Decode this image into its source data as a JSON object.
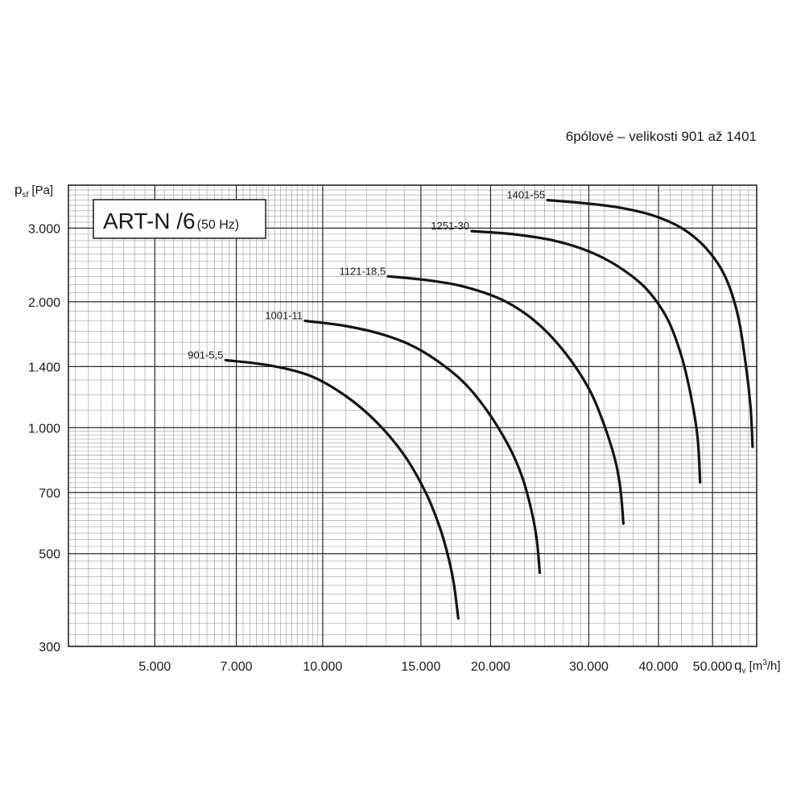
{
  "subtitle": "6pólové – velikosti 901 až 1401",
  "chart_data": {
    "type": "line",
    "title_main": "ART-N /6",
    "title_sub": "(50 Hz)",
    "xlabel": {
      "symbol": "q",
      "sub": "v",
      "unit_pre": " [m",
      "unit_sup": "3",
      "unit_post": "/h]"
    },
    "ylabel": {
      "symbol": "p",
      "sub": "sf",
      "unit": " [Pa]"
    },
    "xscale": "log",
    "yscale": "log",
    "xlim": [
      3500,
      60000
    ],
    "ylim": [
      300,
      3800
    ],
    "grid": true,
    "x_ticks": [
      {
        "value": 5000,
        "label": "5.000"
      },
      {
        "value": 7000,
        "label": "7.000"
      },
      {
        "value": 10000,
        "label": "10.000"
      },
      {
        "value": 15000,
        "label": "15.000"
      },
      {
        "value": 20000,
        "label": "20.000"
      },
      {
        "value": 30000,
        "label": "30.000"
      },
      {
        "value": 40000,
        "label": "40.000"
      },
      {
        "value": 50000,
        "label": "50.000"
      }
    ],
    "y_ticks": [
      {
        "value": 300,
        "label": "300"
      },
      {
        "value": 500,
        "label": "500"
      },
      {
        "value": 700,
        "label": "700"
      },
      {
        "value": 1000,
        "label": "1.000"
      },
      {
        "value": 1400,
        "label": "1.400"
      },
      {
        "value": 2000,
        "label": "2.000"
      },
      {
        "value": 3000,
        "label": "3.000"
      }
    ],
    "series": [
      {
        "name": "901-5,5",
        "x": [
          6700,
          8000,
          9500,
          11000,
          12500,
          14000,
          15300,
          16200,
          16800,
          17200,
          17500
        ],
        "y": [
          1450,
          1410,
          1330,
          1190,
          1030,
          860,
          700,
          580,
          490,
          420,
          350
        ]
      },
      {
        "name": "1001-11",
        "x": [
          9300,
          11000,
          13000,
          15000,
          17500,
          19500,
          21500,
          22800,
          23700,
          24200,
          24500
        ],
        "y": [
          1800,
          1750,
          1660,
          1530,
          1320,
          1120,
          910,
          760,
          630,
          540,
          450
        ]
      },
      {
        "name": "1121-18,5",
        "x": [
          13100,
          15500,
          18000,
          21000,
          24000,
          27000,
          30000,
          32000,
          33500,
          34200,
          34600
        ],
        "y": [
          2300,
          2250,
          2170,
          2020,
          1800,
          1530,
          1240,
          1010,
          830,
          710,
          590
        ]
      },
      {
        "name": "1251-30",
        "x": [
          18500,
          22000,
          26000,
          30000,
          34000,
          38000,
          41500,
          44000,
          45800,
          47000,
          47500
        ],
        "y": [
          2950,
          2900,
          2800,
          2640,
          2420,
          2150,
          1820,
          1480,
          1180,
          950,
          740
        ]
      },
      {
        "name": "1401-55",
        "x": [
          25300,
          29500,
          34000,
          39000,
          44000,
          48500,
          52500,
          55500,
          57300,
          58500,
          59000
        ],
        "y": [
          3500,
          3440,
          3360,
          3220,
          3000,
          2700,
          2320,
          1860,
          1430,
          1120,
          900
        ]
      }
    ]
  }
}
